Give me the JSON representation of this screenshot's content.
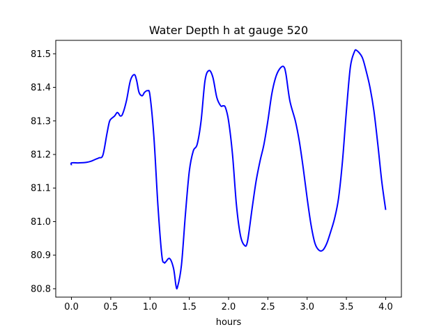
{
  "chart_data": {
    "type": "line",
    "title": "Water Depth h at gauge 520",
    "xlabel": "hours",
    "ylabel": "",
    "xlim": [
      -0.2,
      4.2
    ],
    "ylim": [
      80.775,
      81.54
    ],
    "x_ticks": [
      0.0,
      0.5,
      1.0,
      1.5,
      2.0,
      2.5,
      3.0,
      3.5,
      4.0
    ],
    "x_tick_labels": [
      "0.0",
      "0.5",
      "1.0",
      "1.5",
      "2.0",
      "2.5",
      "3.0",
      "3.5",
      "4.0"
    ],
    "y_ticks": [
      80.8,
      80.9,
      81.0,
      81.1,
      81.2,
      81.3,
      81.4,
      81.5
    ],
    "y_tick_labels": [
      "80.8",
      "80.9",
      "81.0",
      "81.1",
      "81.2",
      "81.3",
      "81.4",
      "81.5"
    ],
    "grid": false,
    "legend": "none",
    "series": [
      {
        "color": "#0000ff",
        "x": [
          0.0,
          0.003,
          0.1,
          0.2,
          0.25,
          0.3,
          0.35,
          0.4,
          0.45,
          0.48,
          0.5,
          0.55,
          0.58,
          0.6,
          0.62,
          0.65,
          0.7,
          0.75,
          0.8,
          0.83,
          0.86,
          0.9,
          0.93,
          0.97,
          1.0,
          1.05,
          1.1,
          1.15,
          1.18,
          1.2,
          1.25,
          1.3,
          1.33,
          1.35,
          1.4,
          1.45,
          1.5,
          1.55,
          1.6,
          1.65,
          1.7,
          1.75,
          1.8,
          1.85,
          1.9,
          1.93,
          1.96,
          2.0,
          2.05,
          2.1,
          2.15,
          2.2,
          2.24,
          2.3,
          2.35,
          2.4,
          2.45,
          2.5,
          2.55,
          2.6,
          2.65,
          2.7,
          2.73,
          2.78,
          2.85,
          2.9,
          2.95,
          3.0,
          3.05,
          3.1,
          3.15,
          3.2,
          3.25,
          3.3,
          3.35,
          3.4,
          3.45,
          3.5,
          3.55,
          3.6,
          3.63,
          3.7,
          3.75,
          3.8,
          3.85,
          3.9,
          3.95,
          4.0
        ],
        "y": [
          81.168,
          81.175,
          81.175,
          81.177,
          81.18,
          81.185,
          81.19,
          81.198,
          81.26,
          81.295,
          81.305,
          81.315,
          81.325,
          81.322,
          81.315,
          81.32,
          81.36,
          81.42,
          81.438,
          81.42,
          81.385,
          81.375,
          81.385,
          81.39,
          81.375,
          81.25,
          81.05,
          80.9,
          80.878,
          80.88,
          80.89,
          80.86,
          80.81,
          80.805,
          80.87,
          81.02,
          81.15,
          81.21,
          81.23,
          81.3,
          81.42,
          81.45,
          81.43,
          81.37,
          81.345,
          81.345,
          81.34,
          81.3,
          81.2,
          81.05,
          80.96,
          80.93,
          80.94,
          81.04,
          81.12,
          81.18,
          81.23,
          81.3,
          81.38,
          81.43,
          81.455,
          81.462,
          81.44,
          81.36,
          81.3,
          81.24,
          81.16,
          81.07,
          80.99,
          80.935,
          80.915,
          80.915,
          80.935,
          80.97,
          81.01,
          81.07,
          81.18,
          81.33,
          81.46,
          81.505,
          81.51,
          81.49,
          81.45,
          81.4,
          81.33,
          81.23,
          81.12,
          81.035
        ]
      }
    ]
  }
}
